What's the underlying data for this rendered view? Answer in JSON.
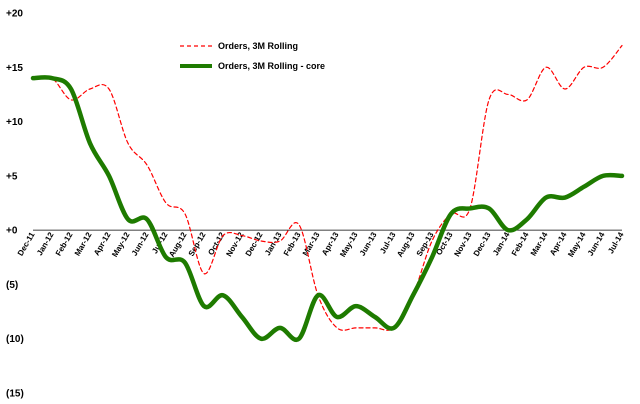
{
  "chart_data": {
    "type": "line",
    "x": [
      "Dec-11",
      "Jan-12",
      "Feb-12",
      "Mar-12",
      "Apr-12",
      "May-12",
      "Jun-12",
      "Jul-12",
      "Aug-12",
      "Sep-12",
      "Oct-12",
      "Nov-12",
      "Dec-12",
      "Jan-13",
      "Feb-13",
      "Mar-13",
      "Apr-13",
      "May-13",
      "Jun-13",
      "Jul-13",
      "Aug-13",
      "Sep-13",
      "Oct-13",
      "Nov-13",
      "Dec-13",
      "Jan-14",
      "Feb-14",
      "Mar-14",
      "Apr-14",
      "May-14",
      "Jun-14",
      "Jul-14"
    ],
    "y_ticks": [
      "+20",
      "+15",
      "+10",
      "+5",
      "+0",
      "(5)",
      "(10)",
      "(15)"
    ],
    "y_tick_values": [
      20,
      15,
      10,
      5,
      0,
      -5,
      -10,
      -15
    ],
    "ylim": [
      -15,
      20
    ],
    "title": "",
    "xlabel": "",
    "ylabel": "",
    "grid": false,
    "legend_position": "top-center",
    "series": [
      {
        "name": "Orders, 3M Rolling",
        "color": "#ff0000",
        "style": "dashed",
        "values": [
          14.0,
          14.0,
          12.0,
          13.0,
          13.0,
          8.0,
          6.0,
          2.5,
          1.5,
          -4.0,
          -0.5,
          -0.5,
          -1.0,
          -1.0,
          0.5,
          -6.0,
          -9.0,
          -9.0,
          -9.0,
          -9.0,
          -6.0,
          -1.0,
          1.5,
          2.0,
          12.0,
          12.5,
          12.0,
          15.0,
          13.0,
          15.0,
          15.0,
          17.0
        ]
      },
      {
        "name": "Orders, 3M Rolling - core",
        "color": "#1e7b00",
        "style": "solid",
        "values": [
          14.0,
          14.0,
          13.0,
          8.0,
          5.0,
          1.0,
          1.0,
          -2.5,
          -3.0,
          -7.0,
          -6.0,
          -8.0,
          -10.0,
          -9.0,
          -10.0,
          -6.0,
          -8.0,
          -7.0,
          -8.0,
          -9.0,
          -6.0,
          -2.5,
          1.5,
          2.0,
          2.0,
          0.0,
          1.0,
          3.0,
          3.0,
          4.0,
          5.0,
          5.0
        ]
      }
    ]
  }
}
